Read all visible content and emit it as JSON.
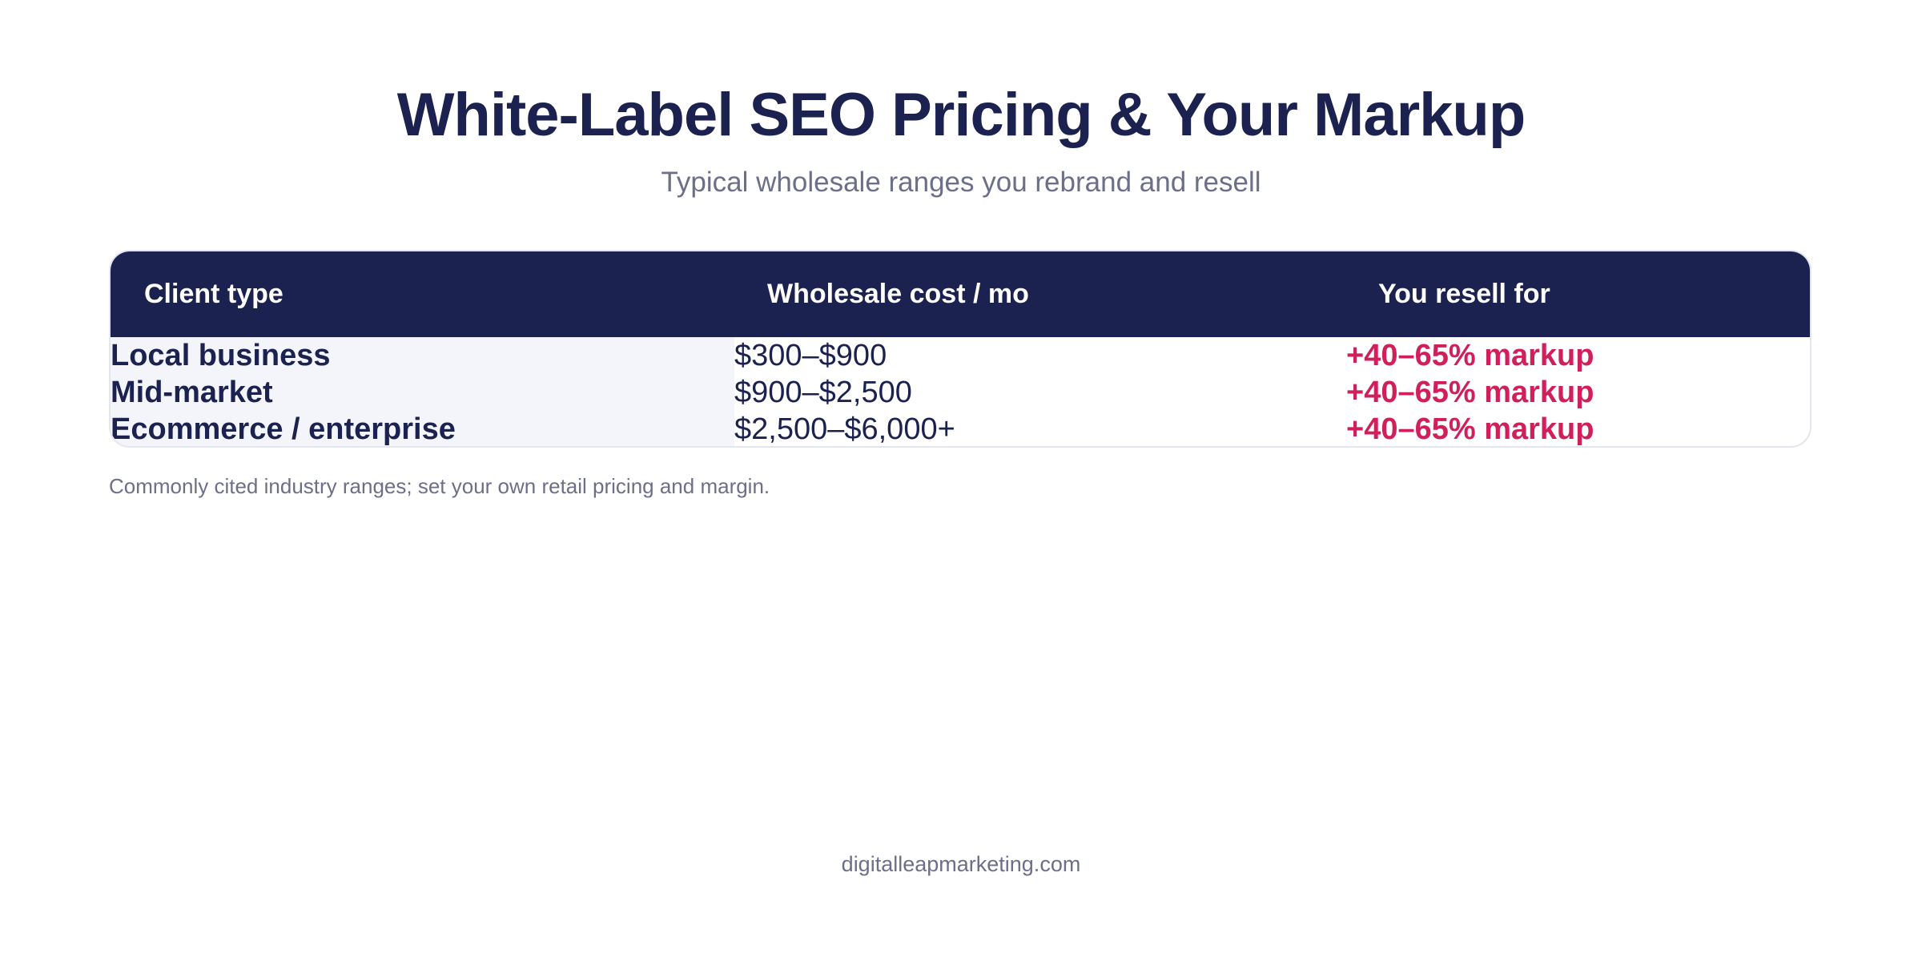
{
  "header": {
    "title": "White-Label SEO Pricing & Your Markup",
    "subtitle": "Typical wholesale ranges you rebrand and resell"
  },
  "table": {
    "columns": [
      "Client type",
      "Wholesale cost / mo",
      "You resell for"
    ],
    "rows": [
      [
        "Local business",
        "$300–$900",
        "+40–65% markup"
      ],
      [
        "Mid-market",
        "$900–$2,500",
        "+40–65% markup"
      ],
      [
        "Ecommerce / enterprise",
        "$2,500–$6,000+",
        "+40–65% markup"
      ]
    ]
  },
  "note": "Commonly cited industry ranges; set your own retail pricing and margin.",
  "footer": "digitalleapmarketing.com"
}
